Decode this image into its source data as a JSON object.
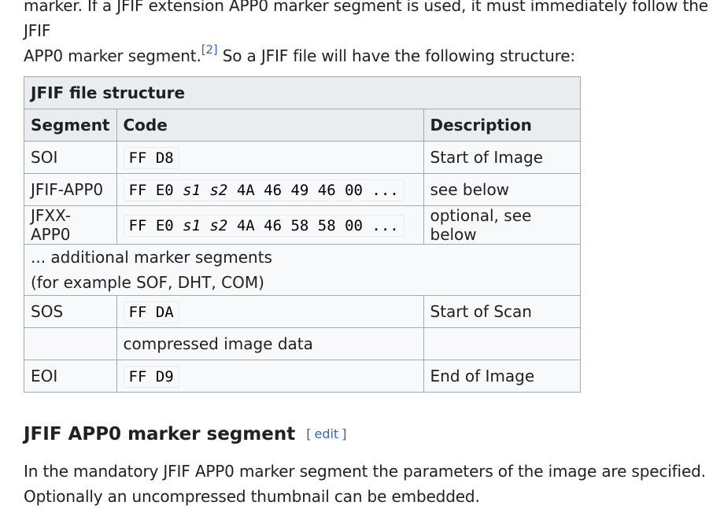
{
  "intro": {
    "line1": "marker. If a JFIF extension APP0 marker segment is used, it must immediately follow the JFIF",
    "line2_before": "APP0 marker segment.",
    "ref": "[2]",
    "line2_after": " So a JFIF file will have the following structure:"
  },
  "table": {
    "caption": "JFIF file structure",
    "headers": {
      "segment": "Segment",
      "code": "Code",
      "description": "Description"
    },
    "rows": [
      {
        "segment": "SOI",
        "code": "FF D8",
        "description": "Start of Image"
      },
      {
        "segment": "JFIF-APP0",
        "code_a": "FF E0 ",
        "code_s1": "s1",
        "code_mid": " ",
        "code_s2": "s2",
        "code_b": " 4A 46 49 46 00 ...",
        "description": "see below"
      },
      {
        "segment": "JFXX-APP0",
        "code_a": "FF E0 ",
        "code_s1": "s1",
        "code_mid": " ",
        "code_s2": "s2",
        "code_b": " 4A 46 58 58 00 ...",
        "description": "optional, see below"
      },
      {
        "merged_line1": "... additional marker segments",
        "merged_line2": "(for example SOF, DHT, COM)"
      },
      {
        "segment": "SOS",
        "code": "FF DA",
        "description": "Start of Scan"
      },
      {
        "segment": "",
        "code": "compressed image data",
        "description": ""
      },
      {
        "segment": "EOI",
        "code": "FF D9",
        "description": "End of Image"
      }
    ]
  },
  "section": {
    "heading": "JFIF APP0 marker segment",
    "edit_open": "[",
    "edit_label": "edit",
    "edit_close": "]"
  },
  "outro": {
    "line1": "In the mandatory JFIF APP0 marker segment the parameters of the image are specified.",
    "line2": "Optionally an uncompressed thumbnail can be embedded."
  }
}
